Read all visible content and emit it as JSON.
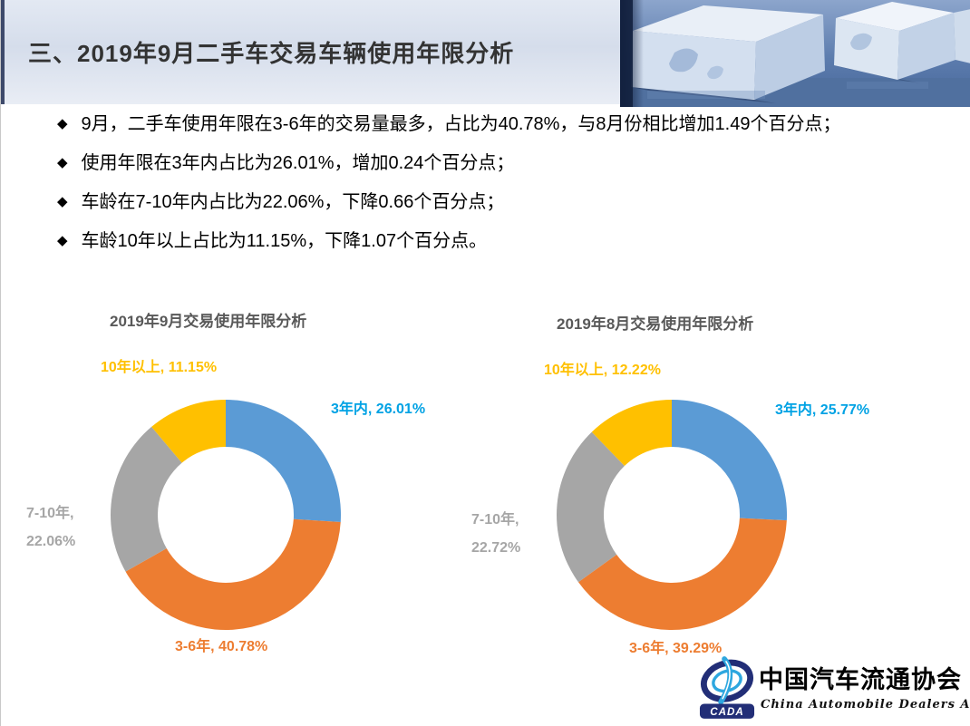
{
  "slide": {
    "header": {
      "title": "三、2019年9月二手车交易车辆使用年限分析"
    },
    "bullet_marker": "◆",
    "bullets": [
      "9月，二手车使用年限在3-6年的交易量最多，占比为40.78%，与8月份相比增加1.49个百分点；",
      "使用年限在3年内占比为26.01%，增加0.24个百分点；",
      "车龄在7-10年内占比为22.06%，下降0.66个百分点；",
      "车龄10年以上占比为11.15%，下降1.07个百分点。"
    ]
  },
  "chart_data": [
    {
      "type": "pie",
      "subtype": "donut",
      "title": "2019年9月交易使用年限分析",
      "categories": [
        "3年内",
        "3-6年",
        "7-10年",
        "10年以上"
      ],
      "values": [
        26.01,
        40.78,
        22.06,
        11.15
      ],
      "unit": "%",
      "colors": [
        "#5B9BD5",
        "#ED7D31",
        "#A6A6A6",
        "#FFC000"
      ],
      "label_colors": [
        "#00A2E4",
        "#ED7D31",
        "#A6A6A6",
        "#FFC000"
      ],
      "label_lines": [
        [
          "3年内, 26.01%"
        ],
        [
          "3-6年, 40.78%"
        ],
        [
          "7-10年,",
          "22.06%"
        ],
        [
          "10年以上, 11.15%"
        ]
      ],
      "start_angle_deg": 0,
      "direction": "clockwise",
      "donut_hole_ratio": 0.59,
      "legend_position": "none"
    },
    {
      "type": "pie",
      "subtype": "donut",
      "title": "2019年8月交易使用年限分析",
      "categories": [
        "3年内",
        "3-6年",
        "7-10年",
        "10年以上"
      ],
      "values": [
        25.77,
        39.29,
        22.72,
        12.22
      ],
      "unit": "%",
      "colors": [
        "#5B9BD5",
        "#ED7D31",
        "#A6A6A6",
        "#FFC000"
      ],
      "label_colors": [
        "#00A2E4",
        "#ED7D31",
        "#A6A6A6",
        "#FFC000"
      ],
      "label_lines": [
        [
          "3年内, 25.77%"
        ],
        [
          "3-6年, 39.29%"
        ],
        [
          "7-10年,",
          "22.72%"
        ],
        [
          "10年以上, 12.22%"
        ]
      ],
      "start_angle_deg": 0,
      "direction": "clockwise",
      "donut_hole_ratio": 0.59,
      "legend_position": "none"
    }
  ],
  "footer": {
    "logo_acronym": "CADA",
    "org_name_cn": "中国汽车流通协会",
    "org_name_en": "China Automobile Dealers Association"
  },
  "colors": {
    "series_blue": "#5B9BD5",
    "series_orange": "#ED7D31",
    "series_gray": "#A6A6A6",
    "series_yellow": "#FFC000",
    "label_blue": "#00A2E4",
    "chart_title_gray": "#595959",
    "header_bar_navy": "#3E4A6B",
    "logo_navy": "#222E77",
    "logo_light_blue": "#2EA7DF"
  }
}
